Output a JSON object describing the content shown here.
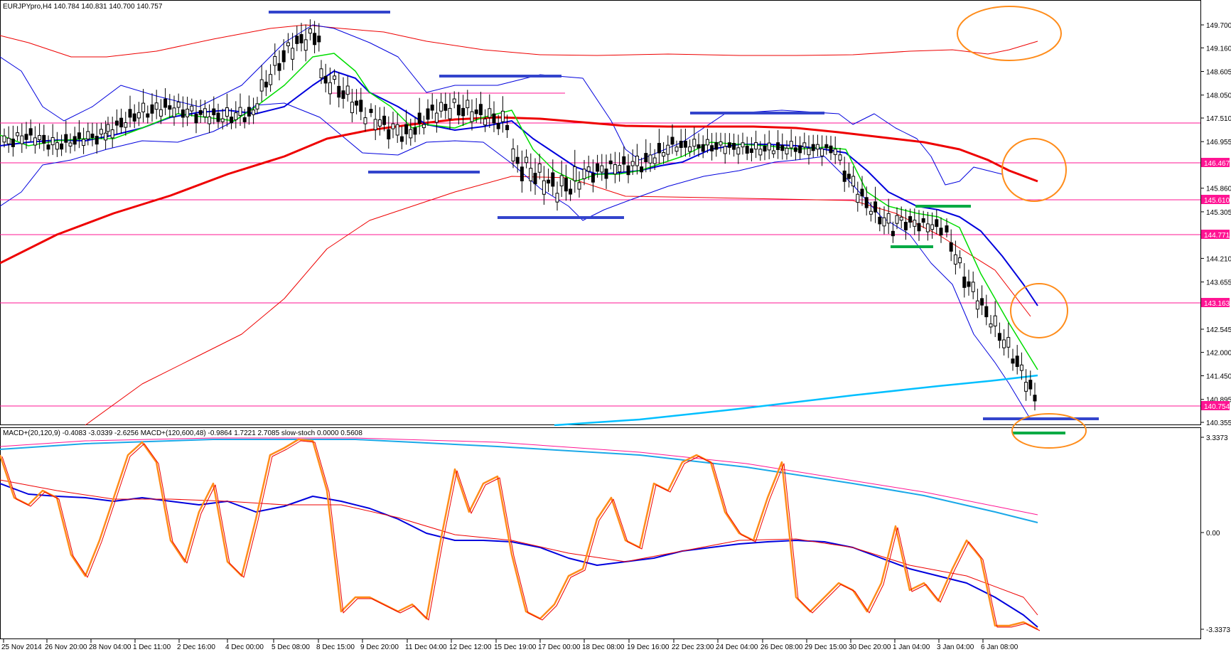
{
  "main": {
    "header": "EURJPYpro,H4  140.784 140.831 140.700 140.757",
    "price_labels": [
      "149.700",
      "149.160",
      "148.605",
      "148.050",
      "147.510",
      "146.955",
      "145.860",
      "145.305",
      "144.210",
      "143.655",
      "142.545",
      "142.000",
      "141.450",
      "140.895",
      "140.355"
    ],
    "tagged_prices": [
      {
        "text": "146.467",
        "color": "#ff1493"
      },
      {
        "text": "145.610",
        "color": "#ff1493"
      },
      {
        "text": "144.771",
        "color": "#ff1493"
      },
      {
        "text": "143.163",
        "color": "#ff1493"
      },
      {
        "text": "140.754",
        "color": "#ff1493"
      }
    ],
    "visible_range": [
      140.3,
      150.0
    ]
  },
  "indicator": {
    "header": "MACD+(20,120,9) -0.4083 -3.0339 -2.6256  MACD+(120,600,48) -0.9864 1.7221 2.7085  slow-stoch 0.0000 0.5608",
    "scale_labels": [
      "3.3373",
      "0.00",
      "-3.3373"
    ]
  },
  "time_axis": [
    "25 Nov 2014",
    "26 Nov 20:00",
    "28 Nov 04:00",
    "1 Dec 11:00",
    "2 Dec 16:00",
    "4 Dec 00:00",
    "5 Dec 08:00",
    "8 Dec 15:00",
    "9 Dec 20:00",
    "11 Dec 04:00",
    "12 Dec 12:00",
    "15 Dec 19:00",
    "17 Dec 00:00",
    "18 Dec 08:00",
    "19 Dec 16:00",
    "22 Dec 23:00",
    "24 Dec 04:00",
    "26 Dec 08:00",
    "29 Dec 15:00",
    "30 Dec 20:00",
    "1 Jan 04:00",
    "3 Jan 04:00",
    "6 Jan 08:00"
  ],
  "colors": {
    "ma_fast": "#00dd00",
    "ma_mid": "#0000dd",
    "ma_slow": "#ee0000",
    "ma_long": "#00bfff",
    "level": "#ff1493",
    "annotation": "#ff8c1a",
    "bar_blue": "#3344cc",
    "bar_green": "#00aa44",
    "stoch": "#ff8c1a"
  }
}
